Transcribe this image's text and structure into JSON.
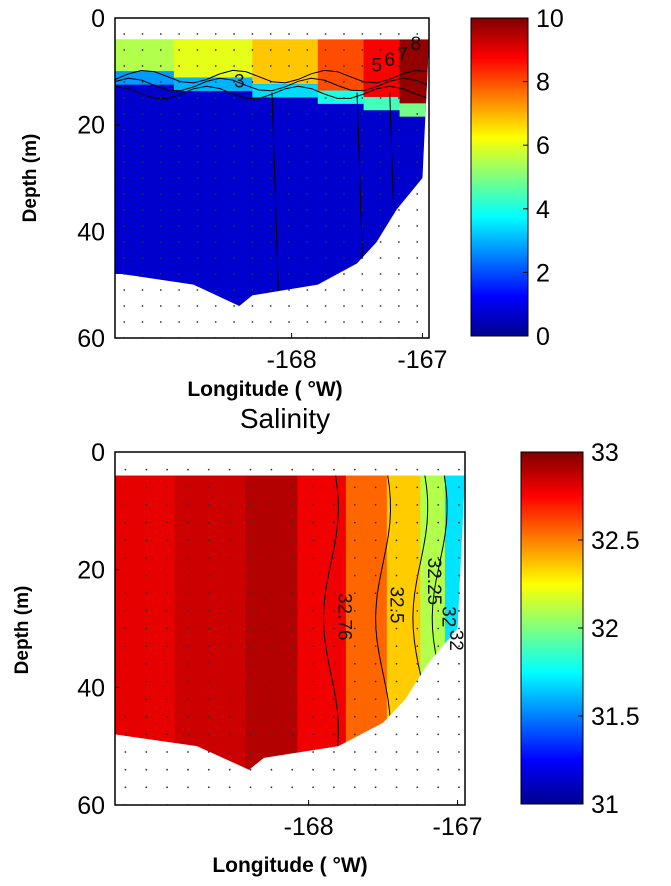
{
  "chart_data": [
    {
      "type": "heatmap",
      "title": "",
      "xlabel": "Longitude ( °W)",
      "ylabel": "Depth (m)",
      "x_ticks": [
        -168,
        -167
      ],
      "y_ticks": [
        0,
        20,
        40,
        60
      ],
      "xlim": [
        -169.35,
        -166.95
      ],
      "ylim": [
        0,
        60
      ],
      "y_reversed": true,
      "colorbar": {
        "min": 0,
        "max": 10,
        "ticks": [
          0,
          2,
          4,
          6,
          8,
          10
        ],
        "colormap": "jet"
      },
      "contour_labels": [
        "5",
        "6",
        "7",
        "8",
        "3"
      ],
      "bottom_depth_profile": {
        "x": [
          -169.3,
          -168.75,
          -168.4,
          -168.3,
          -167.8,
          -167.5,
          -167.35,
          -167.2,
          -167.0
        ],
        "y": [
          48,
          50,
          54,
          52,
          50,
          46,
          42,
          36,
          30
        ]
      },
      "surface_layer": {
        "x": [
          -169.2,
          -168.6,
          -168.0,
          -167.6,
          -167.3,
          -167.05
        ],
        "values": [
          5.5,
          6.0,
          6.8,
          8.0,
          8.8,
          9.8
        ]
      },
      "deep_layer_value": 0.7
    },
    {
      "type": "heatmap",
      "title": "Salinity",
      "xlabel": "Longitude ( °W)",
      "ylabel": "Depth (m)",
      "x_ticks": [
        -168,
        -167
      ],
      "y_ticks": [
        0,
        20,
        40,
        60
      ],
      "xlim": [
        -169.3,
        -166.95
      ],
      "ylim": [
        0,
        60
      ],
      "y_reversed": true,
      "colorbar": {
        "min": 31,
        "max": 33,
        "ticks": [
          31,
          31.5,
          32,
          32.5,
          33
        ],
        "colormap": "jet"
      },
      "contour_labels": [
        "32.76",
        "32.5",
        "32.25",
        "32",
        "32"
      ],
      "bottom_depth_profile": {
        "x": [
          -169.3,
          -168.75,
          -168.4,
          -168.3,
          -167.8,
          -167.5,
          -167.35,
          -167.2,
          -167.0
        ],
        "y": [
          48,
          50,
          54,
          52,
          50,
          46,
          42,
          36,
          30
        ]
      },
      "columns": {
        "x": [
          -169.2,
          -168.6,
          -168.25,
          -167.9,
          -167.6,
          -167.35,
          -167.15,
          -167.02
        ],
        "values": [
          32.8,
          32.85,
          32.9,
          32.78,
          32.55,
          32.35,
          32.1,
          31.7
        ]
      }
    }
  ]
}
